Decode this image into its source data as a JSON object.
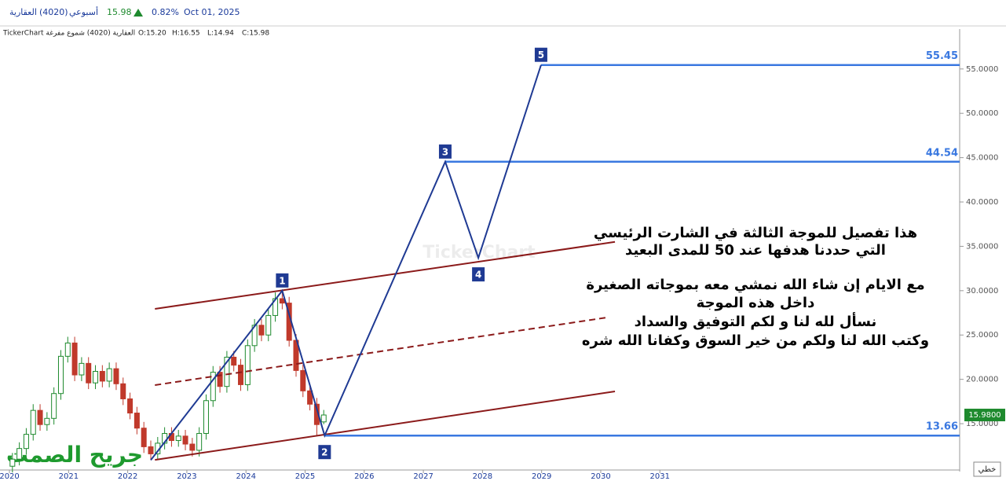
{
  "header": {
    "name": "العقارية",
    "code": "(4020)",
    "period": "أسبوعي",
    "price": "15.98",
    "change": "0.82%",
    "date": "Oct 01, 2025"
  },
  "subheader": {
    "source": "TickerChart العقارية (4020) شموع مفرغة",
    "open": "O:15.20",
    "high": "H:16.55",
    "low": "L:14.94",
    "close": "C:15.98"
  },
  "chart_data": {
    "type": "candlestick",
    "xlim": [
      2019.84,
      2036.07
    ],
    "ylim": [
      9.6,
      59.5
    ],
    "xticks": [
      2020,
      2021,
      2022,
      2023,
      2024,
      2025,
      2026,
      2027,
      2028,
      2029,
      2030,
      2031
    ],
    "yticks": [
      {
        "value": 15,
        "label": "15.0000"
      },
      {
        "value": 20,
        "label": "20.0000"
      },
      {
        "value": 25,
        "label": "25.0000"
      },
      {
        "value": 30,
        "label": "30.0000"
      },
      {
        "value": 35,
        "label": "35.0000"
      },
      {
        "value": 40,
        "label": "40.0000"
      },
      {
        "value": 45,
        "label": "45.0000"
      },
      {
        "value": 50,
        "label": "50.0000"
      },
      {
        "value": 55,
        "label": "55.0000"
      }
    ],
    "candles": {
      "up_color": "#1e8a2e",
      "down_color": "#c0392b",
      "x": [
        2020.05,
        2020.167,
        2020.284,
        2020.401,
        2020.518,
        2020.635,
        2020.752,
        2020.869,
        2020.986,
        2021.103,
        2021.22,
        2021.337,
        2021.454,
        2021.571,
        2021.688,
        2021.805,
        2021.922,
        2022.039,
        2022.156,
        2022.273,
        2022.39,
        2022.507,
        2022.624,
        2022.741,
        2022.858,
        2022.975,
        2023.092,
        2023.209,
        2023.326,
        2023.443,
        2023.56,
        2023.677,
        2023.794,
        2023.911,
        2024.028,
        2024.145,
        2024.262,
        2024.379,
        2024.496,
        2024.613,
        2024.73,
        2024.847,
        2024.964,
        2025.081,
        2025.198,
        2025.315
      ],
      "open": [
        10.2,
        11.0,
        12.2,
        13.8,
        16.5,
        14.9,
        15.6,
        18.4,
        22.6,
        24.1,
        20.5,
        21.8,
        19.6,
        20.9,
        19.8,
        21.2,
        19.5,
        17.8,
        16.2,
        14.5,
        12.4,
        11.6,
        12.8,
        13.9,
        13.1,
        13.6,
        12.7,
        12.0,
        13.9,
        17.6,
        20.8,
        19.2,
        22.5,
        21.6,
        19.4,
        23.8,
        26.1,
        25.0,
        27.2,
        29.1,
        28.6,
        24.4,
        21.0,
        18.7,
        17.2,
        15.2
      ],
      "high": [
        11.7,
        12.9,
        14.5,
        17.2,
        17.2,
        16.3,
        19.1,
        23.3,
        24.8,
        24.8,
        22.5,
        22.5,
        21.6,
        21.6,
        21.9,
        21.9,
        20.2,
        18.5,
        16.9,
        15.2,
        13.1,
        13.5,
        14.6,
        14.6,
        14.3,
        14.3,
        13.4,
        14.6,
        18.3,
        21.5,
        21.5,
        23.2,
        23.2,
        22.3,
        24.5,
        26.8,
        26.8,
        27.9,
        29.8,
        30.0,
        29.3,
        25.1,
        21.7,
        19.4,
        17.9,
        16.55
      ],
      "low": [
        9.5,
        10.3,
        11.5,
        13.1,
        14.2,
        14.2,
        14.9,
        17.7,
        21.9,
        19.8,
        19.8,
        18.9,
        18.9,
        19.1,
        19.1,
        18.8,
        17.1,
        15.5,
        13.8,
        11.7,
        10.9,
        10.9,
        12.1,
        12.4,
        12.4,
        12.0,
        11.3,
        11.3,
        13.2,
        16.9,
        18.5,
        18.5,
        20.9,
        18.7,
        18.7,
        23.1,
        24.3,
        24.3,
        26.5,
        27.9,
        23.7,
        20.3,
        18.0,
        16.5,
        13.66,
        14.94
      ],
      "close": [
        11.0,
        12.2,
        13.8,
        16.5,
        14.9,
        15.6,
        18.4,
        22.6,
        24.1,
        20.5,
        21.8,
        19.6,
        20.9,
        19.8,
        21.2,
        19.5,
        17.8,
        16.2,
        14.5,
        12.4,
        11.6,
        12.8,
        13.9,
        13.1,
        13.6,
        12.7,
        12.0,
        13.9,
        17.6,
        20.8,
        19.2,
        22.5,
        21.6,
        19.4,
        23.8,
        26.1,
        25.0,
        27.2,
        29.1,
        28.6,
        24.4,
        21.0,
        18.7,
        17.2,
        14.9,
        15.98
      ]
    },
    "last_price": {
      "value": 15.98,
      "label": "15.9800"
    },
    "waves": {
      "color": "#1f3a93",
      "x": [
        2022.39,
        2024.613,
        2025.33,
        2027.37,
        2027.93,
        2028.99
      ],
      "y": [
        10.9,
        30.0,
        13.66,
        44.54,
        33.7,
        55.45
      ],
      "labels": [
        null,
        "1",
        "2",
        "3",
        "4",
        "5"
      ]
    },
    "levels": {
      "color": "#3a78e0",
      "values": [
        55.45,
        44.54,
        13.66
      ],
      "x_start": [
        2028.99,
        2027.37,
        2025.33
      ]
    },
    "channels": [
      {
        "color": "#8b1a1a",
        "dashed": false,
        "x": [
          2022.46,
          2030.24
        ],
        "y": [
          27.95,
          35.5
        ]
      },
      {
        "color": "#8b1a1a",
        "dashed": true,
        "x": [
          2022.46,
          2030.1
        ],
        "y": [
          19.35,
          26.97
        ]
      },
      {
        "color": "#8b1a1a",
        "dashed": false,
        "x": [
          2022.46,
          2030.24
        ],
        "y": [
          10.92,
          18.64
        ]
      }
    ],
    "annotations": [
      "هذا تفصيل للموجة الثالثة في الشارت الرئيسي",
      "التي حددنا هدفها عند 50 للمدى البعيد",
      "مع الايام إن شاء الله نمشي معه بموجاته الصغيرة",
      "داخل هذه الموجة",
      "نسأل لله لنا و لكم التوفيق والسداد",
      "وكتب الله لنا ولكم من خير السوق وكفانا الله شره"
    ],
    "watermark": "TickerChart",
    "signature": "جريح الصمت",
    "chart_style": "خطي"
  }
}
